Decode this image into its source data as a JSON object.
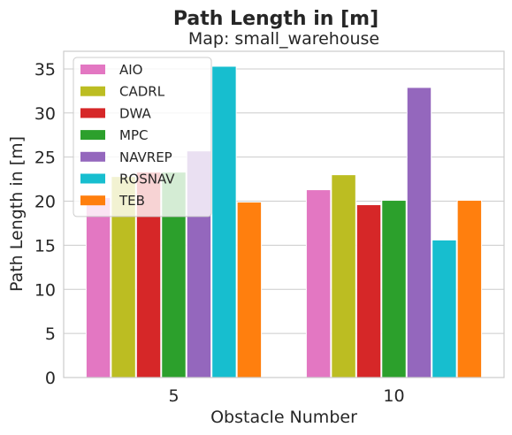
{
  "chart_data": {
    "type": "bar",
    "title": "Path Length in [m]",
    "subtitle": "Map: small_warehouse",
    "xlabel": "Obstacle Number",
    "ylabel": "Path Length in [m]",
    "categories": [
      "5",
      "10"
    ],
    "ylim": [
      0,
      37
    ],
    "yticks": [
      0,
      5,
      10,
      15,
      20,
      25,
      30,
      35
    ],
    "grid": "y",
    "legend_position": "top-left",
    "series": [
      {
        "name": "AIO",
        "color": "#e377c2",
        "values": [
          20.4,
          21.3
        ]
      },
      {
        "name": "CADRL",
        "color": "#bcbd22",
        "values": [
          22.8,
          23.0
        ]
      },
      {
        "name": "DWA",
        "color": "#d62728",
        "values": [
          23.3,
          19.6
        ]
      },
      {
        "name": "MPC",
        "color": "#2ca02c",
        "values": [
          23.3,
          20.1
        ]
      },
      {
        "name": "NAVREP",
        "color": "#9467bd",
        "values": [
          25.7,
          32.9
        ]
      },
      {
        "name": "ROSNAV",
        "color": "#17becf",
        "values": [
          35.3,
          15.6
        ]
      },
      {
        "name": "TEB",
        "color": "#ff7f0e",
        "values": [
          19.9,
          20.1
        ]
      }
    ]
  }
}
